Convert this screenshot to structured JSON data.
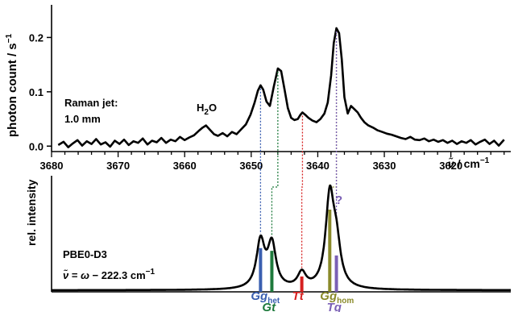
{
  "chart_data": [
    {
      "type": "line",
      "panel": "top",
      "title": "",
      "ylabel": "photon count / s",
      "ylabel_superscript": "−1",
      "xlabel_symbol": "ν̃",
      "xlabel_unit": "/ cm",
      "xlabel_superscript": "−1",
      "xlim": [
        3680,
        3611
      ],
      "x_reversed": true,
      "ylim": [
        -0.01,
        0.26
      ],
      "x_ticks": [
        "3680",
        "3670",
        "3660",
        "3650",
        "3640",
        "3630",
        "3620"
      ],
      "x_tick_values": [
        3680,
        3670,
        3660,
        3650,
        3640,
        3630,
        3620
      ],
      "y_ticks": [
        "0.0",
        "0.1",
        "0.2"
      ],
      "y_tick_values": [
        0.0,
        0.1,
        0.2
      ],
      "annotations": {
        "jet_line1": "Raman jet:",
        "jet_line2": "1.0 mm",
        "water_main": "H",
        "water_sub": "2",
        "water_end": "O"
      },
      "peaks": [
        {
          "x": 3656.8,
          "y": 0.038
        },
        {
          "x": 3648.6,
          "y": 0.112
        },
        {
          "x": 3646.0,
          "y": 0.143
        },
        {
          "x": 3642.3,
          "y": 0.062
        },
        {
          "x": 3637.2,
          "y": 0.217
        }
      ],
      "series": [
        {
          "color": "#000000",
          "x": [
            3679.0,
            3678.2,
            3677.5,
            3676.8,
            3676.1,
            3675.4,
            3674.7,
            3674.0,
            3673.3,
            3672.6,
            3671.9,
            3671.2,
            3670.5,
            3669.8,
            3669.1,
            3668.4,
            3667.7,
            3667.0,
            3666.3,
            3665.6,
            3664.9,
            3664.2,
            3663.5,
            3662.8,
            3662.1,
            3661.4,
            3660.7,
            3660.0,
            3659.3,
            3658.6,
            3657.9,
            3657.3,
            3656.8,
            3656.2,
            3655.6,
            3655.0,
            3654.3,
            3653.6,
            3652.9,
            3652.2,
            3651.5,
            3650.8,
            3650.1,
            3649.5,
            3649.0,
            3648.6,
            3648.2,
            3647.7,
            3647.2,
            3646.6,
            3646.0,
            3645.5,
            3645.0,
            3644.5,
            3644.0,
            3643.5,
            3643.0,
            3642.6,
            3642.3,
            3641.9,
            3641.4,
            3640.8,
            3640.2,
            3639.6,
            3639.0,
            3638.5,
            3638.0,
            3637.6,
            3637.2,
            3636.8,
            3636.4,
            3636.0,
            3635.5,
            3635.0,
            3634.5,
            3634.0,
            3633.5,
            3633.0,
            3632.4,
            3631.7,
            3631.0,
            3630.3,
            3629.6,
            3628.9,
            3628.2,
            3627.5,
            3626.8,
            3626.1,
            3625.4,
            3624.7,
            3624.0,
            3623.3,
            3622.6,
            3621.9,
            3621.2,
            3620.5,
            3619.8,
            3619.1,
            3618.4,
            3617.7,
            3617.0,
            3616.3,
            3615.6,
            3614.9,
            3614.2,
            3613.5,
            3612.8,
            3612.0
          ],
          "y": [
            0.002,
            0.008,
            -0.002,
            0.005,
            0.011,
            0.001,
            0.009,
            0.004,
            0.013,
            0.003,
            0.007,
            -0.001,
            0.01,
            0.004,
            0.012,
            0.002,
            0.009,
            0.006,
            0.014,
            0.003,
            0.01,
            0.007,
            0.015,
            0.006,
            0.012,
            0.009,
            0.017,
            0.011,
            0.016,
            0.02,
            0.028,
            0.034,
            0.038,
            0.03,
            0.022,
            0.019,
            0.024,
            0.018,
            0.026,
            0.022,
            0.031,
            0.04,
            0.058,
            0.08,
            0.102,
            0.112,
            0.104,
            0.082,
            0.074,
            0.11,
            0.143,
            0.138,
            0.105,
            0.07,
            0.052,
            0.048,
            0.05,
            0.058,
            0.062,
            0.058,
            0.052,
            0.047,
            0.044,
            0.05,
            0.06,
            0.08,
            0.13,
            0.19,
            0.217,
            0.208,
            0.16,
            0.09,
            0.06,
            0.074,
            0.068,
            0.062,
            0.052,
            0.044,
            0.038,
            0.034,
            0.029,
            0.026,
            0.023,
            0.021,
            0.018,
            0.015,
            0.013,
            0.017,
            0.012,
            0.011,
            0.014,
            0.009,
            0.012,
            0.008,
            0.011,
            0.006,
            0.01,
            0.004,
            0.009,
            0.006,
            0.011,
            0.003,
            0.008,
            0.012,
            0.004,
            0.01,
            0.001,
            0.012
          ]
        }
      ]
    },
    {
      "type": "line",
      "panel": "bottom",
      "title": "",
      "ylabel": "rel. intensity",
      "xlim": [
        3680,
        3611
      ],
      "x_reversed": true,
      "annotations": {
        "method": "PBE0-D3",
        "shift_symbol": "ν̃",
        "shift_eq": " = ",
        "shift_omega": "ω",
        "shift_rest": " − 222.3 cm",
        "shift_sup": "−1",
        "question_mark": "?"
      },
      "assignments": [
        {
          "label_main": "Gg",
          "label_sub": "het",
          "x": 3648.6,
          "stick": 0.46,
          "color": "#3a5fb0",
          "label_row": "upper"
        },
        {
          "label_main": "Gt",
          "label_sub": "",
          "x": 3646.9,
          "stick": 0.43,
          "color": "#1e7a3c",
          "label_row": "lower"
        },
        {
          "label_main": "Tt",
          "label_sub": "",
          "x": 3642.4,
          "stick": 0.15,
          "color": "#d62020",
          "label_row": "upper"
        },
        {
          "label_main": "Gg",
          "label_sub": "hom",
          "x": 3638.2,
          "stick": 0.88,
          "color": "#8a8a2a",
          "label_row": "upper"
        },
        {
          "label_main": "Tg",
          "label_sub": "",
          "x": 3637.2,
          "stick": 0.38,
          "color": "#7a5fb5",
          "label_row": "lower"
        }
      ],
      "lorentz_hwhm": 0.75,
      "series": [
        {
          "color": "#000000",
          "description_none": true
        }
      ]
    }
  ]
}
